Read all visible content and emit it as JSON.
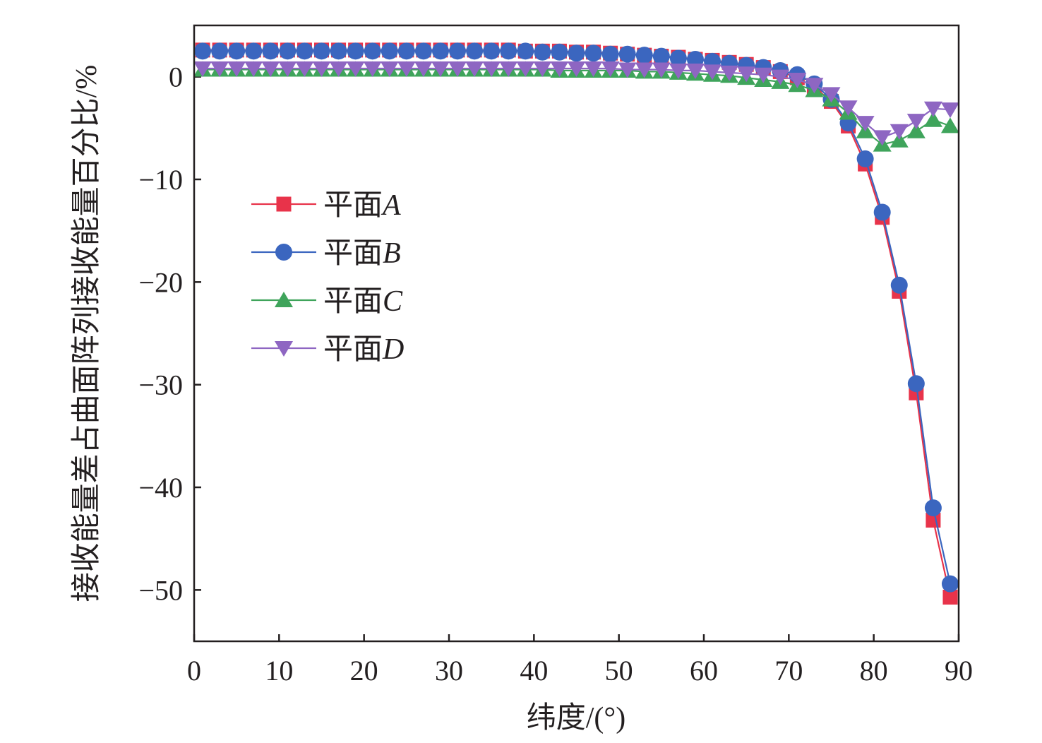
{
  "chart_data": {
    "type": "line",
    "title": "",
    "xlabel": "纬度/(°)",
    "ylabel": "接收能量差占曲面阵列接收能量百分比/%",
    "xlim": [
      0,
      90
    ],
    "ylim": [
      -55,
      5
    ],
    "xticks": [
      0,
      10,
      20,
      30,
      40,
      50,
      60,
      70,
      80,
      90
    ],
    "yticks": [
      0,
      -10,
      -20,
      -30,
      -40,
      -50
    ],
    "ytick_labels": [
      "0",
      "−10",
      "−20",
      "−30",
      "−40",
      "−50"
    ],
    "legend_position": "left",
    "x": [
      1,
      3,
      5,
      7,
      9,
      11,
      13,
      15,
      17,
      19,
      21,
      23,
      25,
      27,
      29,
      31,
      33,
      35,
      37,
      39,
      41,
      43,
      45,
      47,
      49,
      51,
      53,
      55,
      57,
      59,
      61,
      63,
      65,
      67,
      69,
      71,
      73,
      75,
      77,
      79,
      81,
      83,
      85,
      87,
      89
    ],
    "series": [
      {
        "name": "平面",
        "name_italic": "A",
        "color": "#e8334a",
        "marker": "square",
        "values": [
          2.6,
          2.6,
          2.6,
          2.6,
          2.6,
          2.6,
          2.6,
          2.6,
          2.6,
          2.6,
          2.6,
          2.6,
          2.6,
          2.6,
          2.6,
          2.6,
          2.6,
          2.6,
          2.6,
          2.5,
          2.5,
          2.5,
          2.4,
          2.4,
          2.3,
          2.2,
          2.1,
          2.0,
          1.9,
          1.7,
          1.6,
          1.4,
          1.2,
          0.9,
          0.5,
          -0.1,
          -1.0,
          -2.4,
          -4.8,
          -8.5,
          -13.7,
          -20.9,
          -30.8,
          -43.2,
          -50.7
        ]
      },
      {
        "name": "平面",
        "name_italic": "B",
        "color": "#3b66bf",
        "marker": "circle",
        "values": [
          2.5,
          2.5,
          2.5,
          2.5,
          2.5,
          2.5,
          2.5,
          2.5,
          2.5,
          2.5,
          2.5,
          2.5,
          2.5,
          2.5,
          2.5,
          2.5,
          2.5,
          2.5,
          2.5,
          2.5,
          2.4,
          2.4,
          2.3,
          2.3,
          2.2,
          2.2,
          2.1,
          2.0,
          1.8,
          1.7,
          1.5,
          1.3,
          1.1,
          0.9,
          0.6,
          0.2,
          -0.7,
          -2.2,
          -4.5,
          -8.0,
          -13.2,
          -20.3,
          -29.9,
          -42.0,
          -49.4
        ]
      },
      {
        "name": "平面",
        "name_italic": "C",
        "color": "#3fa45b",
        "marker": "triangle-up",
        "values": [
          0.7,
          0.7,
          0.7,
          0.7,
          0.7,
          0.7,
          0.7,
          0.7,
          0.7,
          0.7,
          0.7,
          0.7,
          0.7,
          0.7,
          0.7,
          0.7,
          0.7,
          0.7,
          0.7,
          0.7,
          0.7,
          0.6,
          0.6,
          0.6,
          0.6,
          0.6,
          0.5,
          0.5,
          0.4,
          0.3,
          0.2,
          0.1,
          -0.1,
          -0.3,
          -0.5,
          -0.8,
          -1.3,
          -2.2,
          -3.5,
          -5.3,
          -6.6,
          -6.2,
          -5.3,
          -4.2,
          -4.8
        ]
      },
      {
        "name": "平面",
        "name_italic": "D",
        "color": "#8e66c2",
        "marker": "triangle-down",
        "values": [
          0.8,
          0.8,
          0.8,
          0.8,
          0.8,
          0.8,
          0.8,
          0.8,
          0.8,
          0.8,
          0.8,
          0.8,
          0.8,
          0.8,
          0.8,
          0.8,
          0.8,
          0.8,
          0.8,
          0.8,
          0.8,
          0.8,
          0.8,
          0.8,
          0.8,
          0.7,
          0.7,
          0.7,
          0.6,
          0.6,
          0.5,
          0.4,
          0.3,
          0.2,
          0.0,
          -0.3,
          -0.8,
          -1.7,
          -3.0,
          -4.5,
          -5.9,
          -5.3,
          -4.3,
          -3.1,
          -3.2
        ]
      }
    ]
  }
}
